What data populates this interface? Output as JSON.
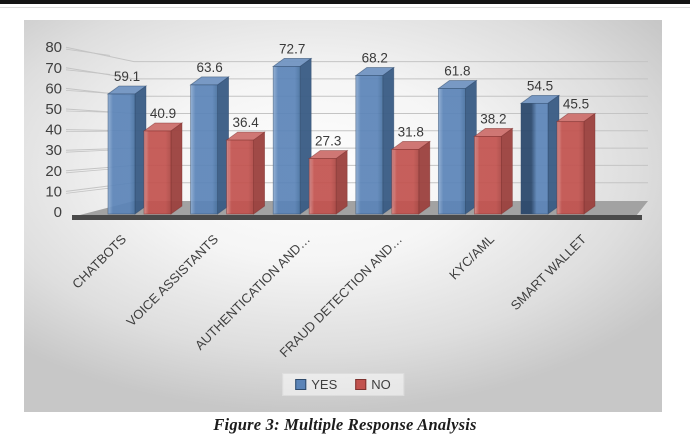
{
  "figure_caption": "Figure 3: Multiple Response Analysis",
  "chart_data": {
    "type": "bar",
    "projection": "3d",
    "title": "",
    "xlabel": "",
    "ylabel": "",
    "ylim": [
      0,
      80
    ],
    "yticks": [
      0,
      10,
      20,
      30,
      40,
      50,
      60,
      70,
      80
    ],
    "grid": true,
    "legend_position": "bottom",
    "value_labels": true,
    "categories": [
      "CHATBOTS",
      "VOICE ASSISTANTS",
      "AUTHENTICATION AND…",
      "FRAUD DETECTION AND…",
      "KYC/AML",
      "SMART WALLET"
    ],
    "series": [
      {
        "name": "YES",
        "values": [
          59.1,
          63.6,
          72.7,
          68.2,
          61.8,
          54.5
        ],
        "color": "#5b84b8",
        "shades": {
          "highlight": "#8cabd1",
          "front": "#5b84b8",
          "front_deep": "#46709f",
          "side": "#3a5d85",
          "top": "#7496c2",
          "border": "#2f4a6b",
          "dark": "#27456a"
        }
      },
      {
        "name": "NO",
        "values": [
          40.9,
          36.4,
          27.3,
          31.8,
          38.2,
          45.5
        ],
        "color": "#c2524e",
        "shades": {
          "highlight": "#dc8f8b",
          "front": "#c2524e",
          "front_deep": "#ab4642",
          "side": "#9c4340",
          "top": "#cd7370",
          "border": "#7e322f",
          "dark": "#8a3734"
        }
      }
    ],
    "colors": {
      "grid_line": "#c4c4c4",
      "axis_text": "#3f3f3f",
      "value_label_text": "#3a3a3a",
      "floor_fill": "#a2a2a2",
      "floor_edge": "#4a4a4a"
    }
  }
}
